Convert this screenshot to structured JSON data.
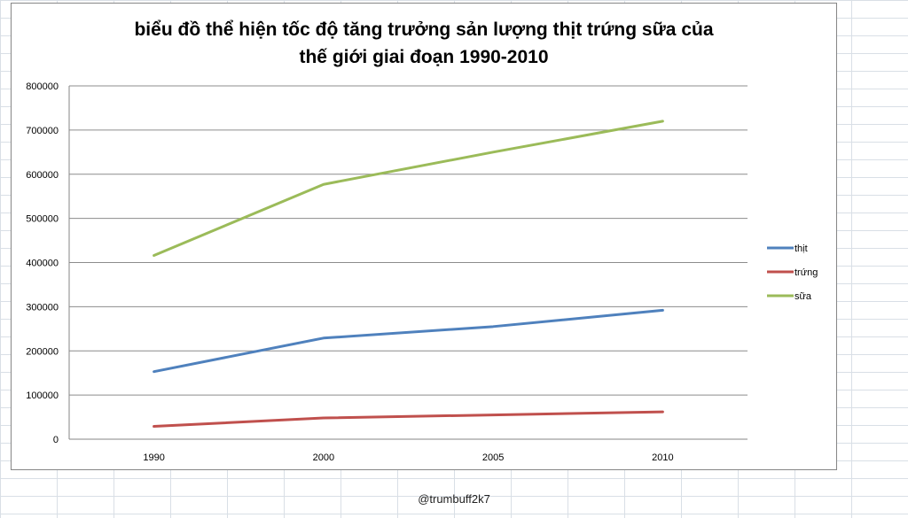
{
  "chart_data": {
    "type": "line",
    "title": "biểu đồ thể hiện tốc độ tăng trưởng sản lượng thịt trứng sữa của thế giới giai đoạn 1990-2010",
    "title_lines": [
      "biểu đồ thể hiện tốc độ tăng trưởng sản lượng thịt trứng sữa của",
      "thế giới giai đoạn 1990-2010"
    ],
    "categories": [
      "1990",
      "2000",
      "2005",
      "2010"
    ],
    "series": [
      {
        "name": "thịt",
        "values": [
          153000,
          229000,
          255000,
          292000
        ],
        "color": "#4f81bd"
      },
      {
        "name": "trứng",
        "values": [
          29000,
          48000,
          55000,
          62000
        ],
        "color": "#c0504d"
      },
      {
        "name": "sữa",
        "values": [
          416000,
          577000,
          650000,
          720000
        ],
        "color": "#9bbb59"
      }
    ],
    "ylim": [
      0,
      800000
    ],
    "yticks": [
      "0",
      "100000",
      "200000",
      "300000",
      "400000",
      "500000",
      "600000",
      "700000",
      "800000"
    ],
    "xlabel": "",
    "ylabel": "",
    "grid": true,
    "legend_position": "right"
  },
  "credit": "@trumbuff2k7"
}
